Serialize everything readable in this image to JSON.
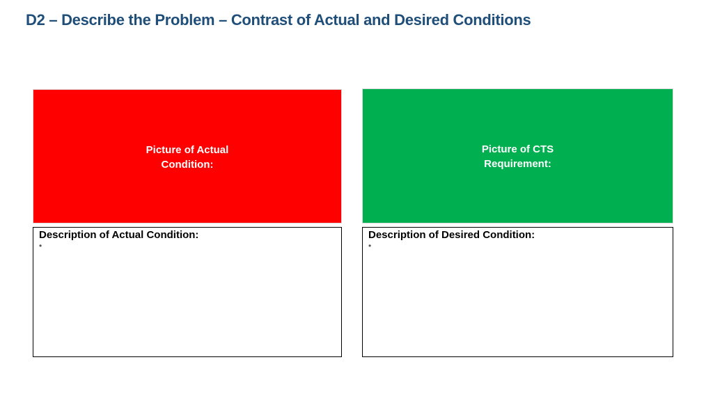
{
  "slide": {
    "title": "D2 – Describe the Problem – Contrast of Actual and Desired Conditions"
  },
  "actual": {
    "picture_label": "Picture of Actual Condition:",
    "picture_color": "#ff0000",
    "description_heading": "Description of Actual Condition:",
    "bullet": "•"
  },
  "desired": {
    "picture_label": "Picture of CTS Requirement:",
    "picture_color": "#00b050",
    "description_heading": "Description of Desired Condition:",
    "bullet": "•"
  },
  "colors": {
    "title": "#1f4e79",
    "actual_fill": "#ff0000",
    "desired_fill": "#00b050"
  }
}
